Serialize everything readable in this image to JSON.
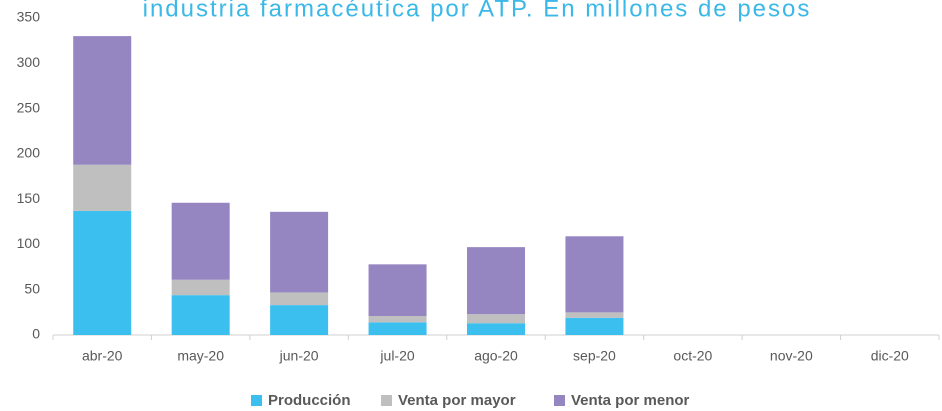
{
  "chart_data": {
    "type": "bar",
    "stacked": true,
    "title": "industria farmacéutica por ATP. En millones de pesos",
    "categories": [
      "abr-20",
      "may-20",
      "jun-20",
      "jul-20",
      "ago-20",
      "sep-20",
      "oct-20",
      "nov-20",
      "dic-20"
    ],
    "series": [
      {
        "name": "Producción",
        "color": "#3bbfef",
        "values": [
          137,
          44,
          33,
          14,
          13,
          19,
          null,
          null,
          null
        ]
      },
      {
        "name": "Venta por mayor",
        "color": "#bfbfbf",
        "values": [
          51,
          17,
          14,
          7,
          10,
          6,
          null,
          null,
          null
        ]
      },
      {
        "name": "Venta por menor",
        "color": "#9585c0",
        "values": [
          142,
          85,
          89,
          57,
          74,
          84,
          null,
          null,
          null
        ]
      }
    ],
    "ylim": [
      0,
      350
    ],
    "yticks": [
      0,
      50,
      100,
      150,
      200,
      250,
      300,
      350
    ],
    "grid": false,
    "legend": "bottom"
  }
}
